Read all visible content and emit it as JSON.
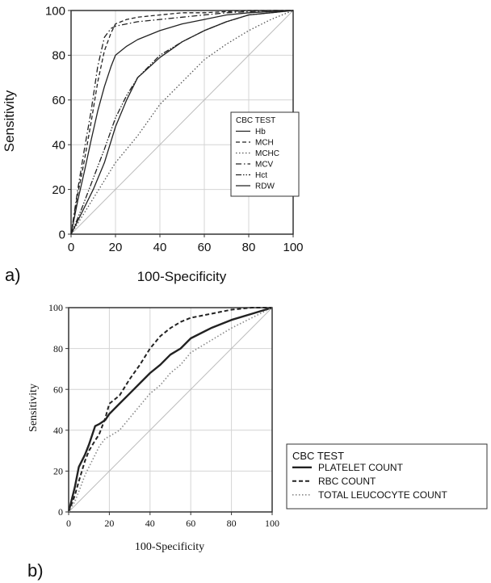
{
  "chart_data": [
    {
      "panel_label": "a)",
      "type": "line",
      "xlabel": "100-Specificity",
      "ylabel": "Sensitivity",
      "xlim": [
        0,
        100
      ],
      "ylim": [
        0,
        100
      ],
      "xticks": [
        "0",
        "20",
        "40",
        "60",
        "80",
        "100"
      ],
      "yticks": [
        "0",
        "20",
        "40",
        "60",
        "80",
        "100"
      ],
      "grid": true,
      "reference_line": true,
      "legend": {
        "title": "CBC TEST",
        "position": "right",
        "entries": [
          "Hb",
          "MCH",
          "MCHC",
          "MCV",
          "Hct",
          "RDW"
        ]
      },
      "series": [
        {
          "name": "Hb",
          "style": "solid",
          "x": [
            0,
            3,
            6,
            9,
            12,
            15,
            18,
            20,
            25,
            30,
            40,
            50,
            60,
            70,
            80,
            90,
            100
          ],
          "y": [
            0,
            15,
            28,
            42,
            55,
            66,
            75,
            80,
            84,
            87,
            91,
            94,
            96,
            98,
            99,
            99.5,
            100
          ]
        },
        {
          "name": "MCH",
          "style": "dashed",
          "x": [
            0,
            3,
            6,
            9,
            12,
            15,
            18,
            20,
            25,
            30,
            40,
            50,
            60,
            70,
            80,
            90,
            100
          ],
          "y": [
            0,
            18,
            33,
            50,
            68,
            82,
            90,
            94,
            96,
            97,
            98,
            99,
            99,
            99.5,
            100,
            100,
            100
          ]
        },
        {
          "name": "MCHC",
          "style": "dotted",
          "x": [
            0,
            5,
            10,
            15,
            20,
            30,
            40,
            50,
            60,
            70,
            80,
            90,
            100
          ],
          "y": [
            0,
            8,
            16,
            24,
            32,
            44,
            58,
            68,
            78,
            85,
            91,
            96,
            100
          ]
        },
        {
          "name": "MCV",
          "style": "dashdot",
          "x": [
            0,
            3,
            6,
            9,
            12,
            15,
            18,
            20,
            25,
            30,
            40,
            50,
            60,
            70,
            80,
            90,
            100
          ],
          "y": [
            0,
            20,
            38,
            55,
            75,
            88,
            92,
            93,
            94,
            95,
            96,
            97,
            98,
            99,
            99.5,
            100,
            100
          ]
        },
        {
          "name": "Hct",
          "style": "dashdotdot",
          "x": [
            0,
            5,
            10,
            15,
            20,
            25,
            30,
            40,
            50,
            60,
            70,
            80,
            90,
            100
          ],
          "y": [
            0,
            12,
            25,
            38,
            52,
            62,
            70,
            80,
            86,
            91,
            95,
            98,
            99,
            100
          ]
        },
        {
          "name": "RDW",
          "style": "solid",
          "x": [
            0,
            5,
            10,
            15,
            20,
            25,
            30,
            40,
            50,
            60,
            70,
            80,
            90,
            100
          ],
          "y": [
            0,
            10,
            20,
            32,
            48,
            60,
            70,
            79,
            86,
            91,
            95,
            98,
            99,
            100
          ]
        }
      ]
    },
    {
      "panel_label": "b)",
      "type": "line",
      "xlabel": "100-Specificity",
      "ylabel": "Sensitivity",
      "xlim": [
        0,
        100
      ],
      "ylim": [
        0,
        100
      ],
      "xticks": [
        "0",
        "20",
        "40",
        "60",
        "80",
        "100"
      ],
      "yticks": [
        "0",
        "20",
        "40",
        "60",
        "80",
        "100"
      ],
      "grid": true,
      "reference_line": true,
      "legend": {
        "title": "CBC TEST",
        "position": "outside-right",
        "entries": [
          "PLATELET COUNT",
          "RBC COUNT",
          "TOTAL LEUCOCYTE COUNT"
        ]
      },
      "series": [
        {
          "name": "PLATELET COUNT",
          "style": "solid",
          "x": [
            0,
            3,
            5,
            8,
            10,
            13,
            15,
            18,
            20,
            25,
            30,
            35,
            40,
            45,
            50,
            55,
            60,
            70,
            80,
            90,
            100
          ],
          "y": [
            0,
            12,
            22,
            28,
            33,
            42,
            43,
            45,
            48,
            53,
            58,
            63,
            68,
            72,
            77,
            80,
            85,
            90,
            94,
            97,
            100
          ]
        },
        {
          "name": "RBC COUNT",
          "style": "dashed",
          "x": [
            0,
            3,
            5,
            8,
            10,
            13,
            15,
            18,
            20,
            25,
            30,
            35,
            40,
            45,
            50,
            55,
            60,
            70,
            80,
            90,
            100
          ],
          "y": [
            0,
            8,
            15,
            25,
            30,
            35,
            38,
            46,
            53,
            57,
            65,
            72,
            80,
            86,
            90,
            93,
            95,
            97,
            99,
            100,
            100
          ]
        },
        {
          "name": "TOTAL LEUCOCYTE COUNT",
          "style": "dotted",
          "x": [
            0,
            3,
            5,
            8,
            10,
            13,
            15,
            18,
            20,
            25,
            30,
            35,
            40,
            45,
            50,
            55,
            60,
            70,
            80,
            90,
            100
          ],
          "y": [
            0,
            5,
            10,
            18,
            22,
            28,
            32,
            36,
            37,
            40,
            46,
            52,
            58,
            62,
            68,
            72,
            78,
            84,
            90,
            95,
            100
          ]
        }
      ]
    }
  ]
}
